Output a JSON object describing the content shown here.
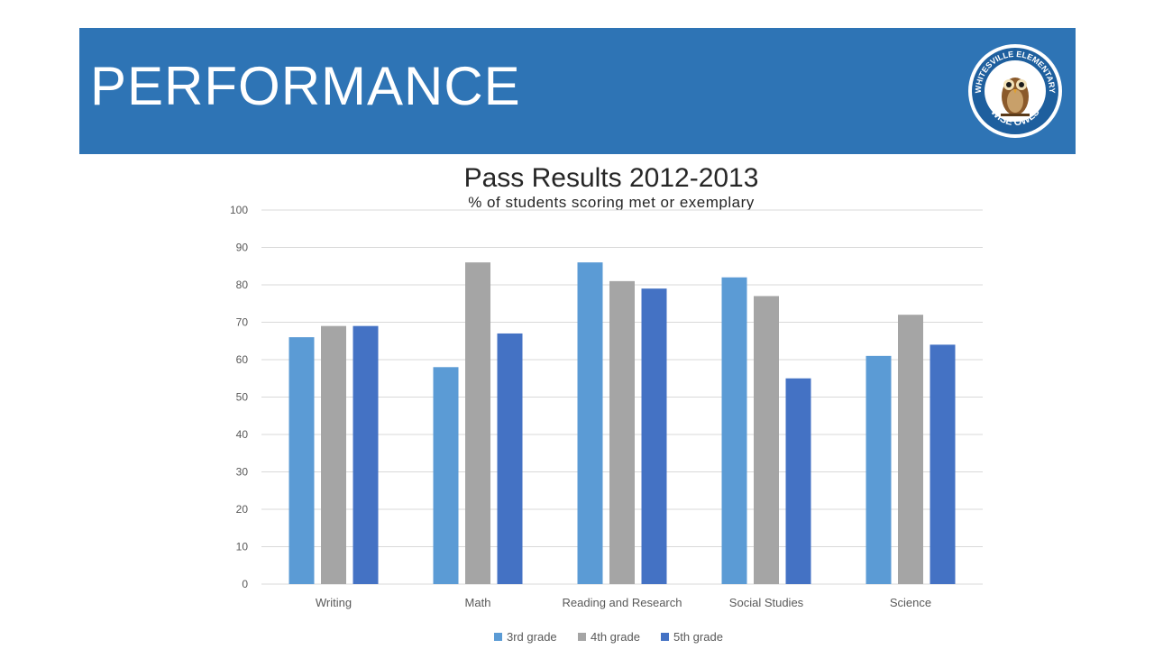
{
  "header": {
    "title": "PERFORMANCE",
    "logo_top_text": "WHITESVILLE ELEMENTARY",
    "logo_bottom_text": "WISE OWLS"
  },
  "colors": {
    "banner": "#2e74b5",
    "series": [
      "#5b9bd5",
      "#a5a5a5",
      "#4472c4"
    ],
    "gridline": "#d9d9d9",
    "axis_text": "#595959"
  },
  "chart_data": {
    "type": "bar",
    "title": "Pass Results 2012-2013",
    "subtitle": "% of students scoring met or exemplary",
    "xlabel": "",
    "ylabel": "",
    "categories": [
      "Writing",
      "Math",
      "Reading and Research",
      "Social Studies",
      "Science"
    ],
    "series": [
      {
        "name": "3rd grade",
        "values": [
          66,
          58,
          86,
          82,
          61
        ]
      },
      {
        "name": "4th grade",
        "values": [
          69,
          86,
          81,
          77,
          72
        ]
      },
      {
        "name": "5th grade",
        "values": [
          69,
          67,
          79,
          55,
          64
        ]
      }
    ],
    "ylim": [
      0,
      100
    ],
    "yticks": [
      0,
      10,
      20,
      30,
      40,
      50,
      60,
      70,
      80,
      90,
      100
    ],
    "grid": true,
    "legend": "bottom"
  }
}
